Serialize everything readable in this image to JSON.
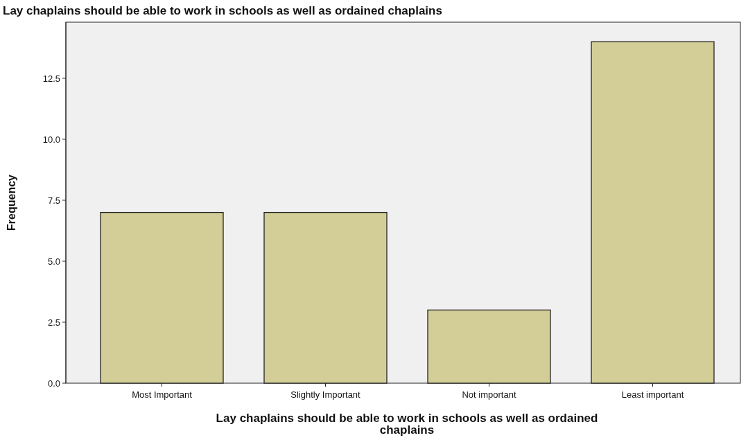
{
  "chart_data": {
    "type": "bar",
    "title": "Lay chaplains should be able to work in schools as well as ordained chaplains",
    "xlabel": "Lay chaplains should be able to work in schools as well as ordained chaplains",
    "ylabel": "Frequency",
    "categories": [
      "Most Important",
      "Slightly Important",
      "Not important",
      "Least important"
    ],
    "values": [
      7,
      7,
      3,
      14
    ],
    "color": "#d3ce97",
    "ylim": [
      0,
      14.8
    ],
    "yticks": [
      {
        "value": 0,
        "label": "0.0"
      },
      {
        "value": 2.5,
        "label": "2.5"
      },
      {
        "value": 5,
        "label": "5.0"
      },
      {
        "value": 7.5,
        "label": "7.5"
      },
      {
        "value": 10,
        "label": "10.0"
      },
      {
        "value": 12.5,
        "label": "12.5"
      }
    ],
    "grid": false
  }
}
